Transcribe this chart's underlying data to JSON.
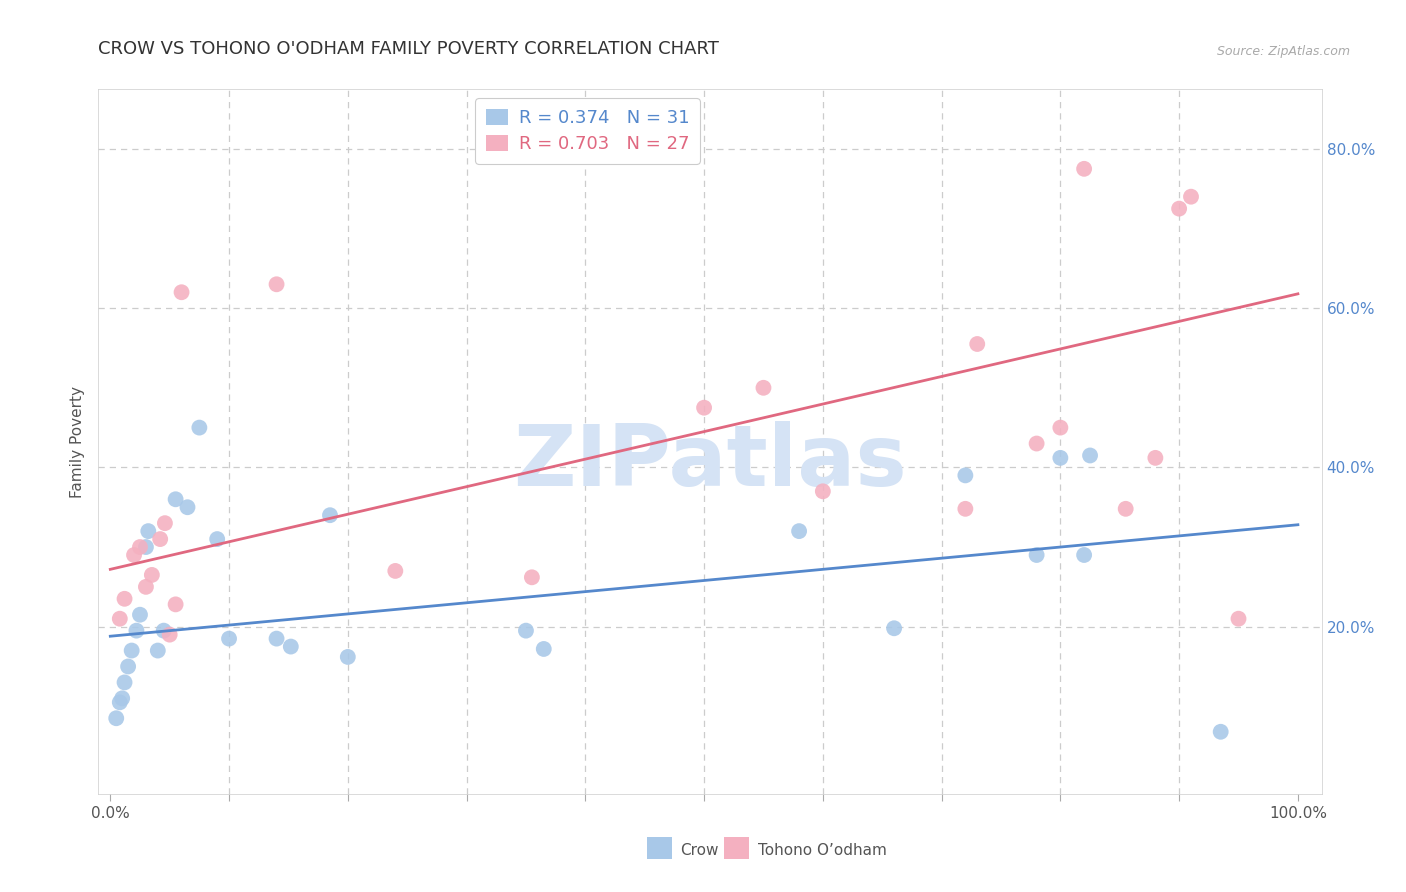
{
  "title": "CROW VS TOHONO O'ODHAM FAMILY POVERTY CORRELATION CHART",
  "source": "Source: ZipAtlas.com",
  "ylabel": "Family Poverty",
  "xlim": [
    -0.01,
    1.02
  ],
  "ylim": [
    -0.01,
    0.875
  ],
  "xticks": [
    0.0,
    0.1,
    0.2,
    0.3,
    0.4,
    0.5,
    0.6,
    0.7,
    0.8,
    0.9,
    1.0
  ],
  "xtick_labels_show": [
    "0.0%",
    "100.0%"
  ],
  "yticks": [
    0.0,
    0.2,
    0.4,
    0.6,
    0.8
  ],
  "ytick_labels": [
    "",
    "20.0%",
    "40.0%",
    "60.0%",
    "80.0%"
  ],
  "crow_R": "0.374",
  "crow_N": "31",
  "tohono_R": "0.703",
  "tohono_N": "27",
  "crow_color": "#A8C8E8",
  "tohono_color": "#F4B0C0",
  "crow_line_color": "#5588CC",
  "tohono_line_color": "#E06880",
  "crow_scatter_x": [
    0.005,
    0.008,
    0.01,
    0.012,
    0.015,
    0.018,
    0.022,
    0.025,
    0.03,
    0.032,
    0.04,
    0.045,
    0.055,
    0.065,
    0.075,
    0.09,
    0.1,
    0.14,
    0.152,
    0.185,
    0.2,
    0.35,
    0.365,
    0.58,
    0.66,
    0.72,
    0.78,
    0.8,
    0.82,
    0.825,
    0.935
  ],
  "crow_scatter_y": [
    0.085,
    0.105,
    0.11,
    0.13,
    0.15,
    0.17,
    0.195,
    0.215,
    0.3,
    0.32,
    0.17,
    0.195,
    0.36,
    0.35,
    0.45,
    0.31,
    0.185,
    0.185,
    0.175,
    0.34,
    0.162,
    0.195,
    0.172,
    0.32,
    0.198,
    0.39,
    0.29,
    0.412,
    0.29,
    0.415,
    0.068
  ],
  "tohono_scatter_x": [
    0.008,
    0.012,
    0.02,
    0.025,
    0.03,
    0.035,
    0.042,
    0.046,
    0.05,
    0.055,
    0.06,
    0.14,
    0.24,
    0.355,
    0.5,
    0.55,
    0.6,
    0.72,
    0.73,
    0.78,
    0.8,
    0.82,
    0.855,
    0.88,
    0.9,
    0.91,
    0.95
  ],
  "tohono_scatter_y": [
    0.21,
    0.235,
    0.29,
    0.3,
    0.25,
    0.265,
    0.31,
    0.33,
    0.19,
    0.228,
    0.62,
    0.63,
    0.27,
    0.262,
    0.475,
    0.5,
    0.37,
    0.348,
    0.555,
    0.43,
    0.45,
    0.775,
    0.348,
    0.412,
    0.725,
    0.74,
    0.21
  ],
  "crow_trendline_x": [
    0.0,
    1.0
  ],
  "crow_trendline_y": [
    0.188,
    0.328
  ],
  "tohono_trendline_x": [
    0.0,
    1.0
  ],
  "tohono_trendline_y": [
    0.272,
    0.618
  ],
  "bg_color": "#FFFFFF",
  "grid_color": "#CCCCCC",
  "title_fontsize": 13,
  "ylabel_fontsize": 11,
  "tick_fontsize": 11,
  "legend_fontsize": 13,
  "watermark_text": "ZIPatlas",
  "watermark_color": "#D5E3F5",
  "watermark_fontsize": 62,
  "legend_label_crow": "Crow",
  "legend_label_tohono": "Tohono O’odham"
}
